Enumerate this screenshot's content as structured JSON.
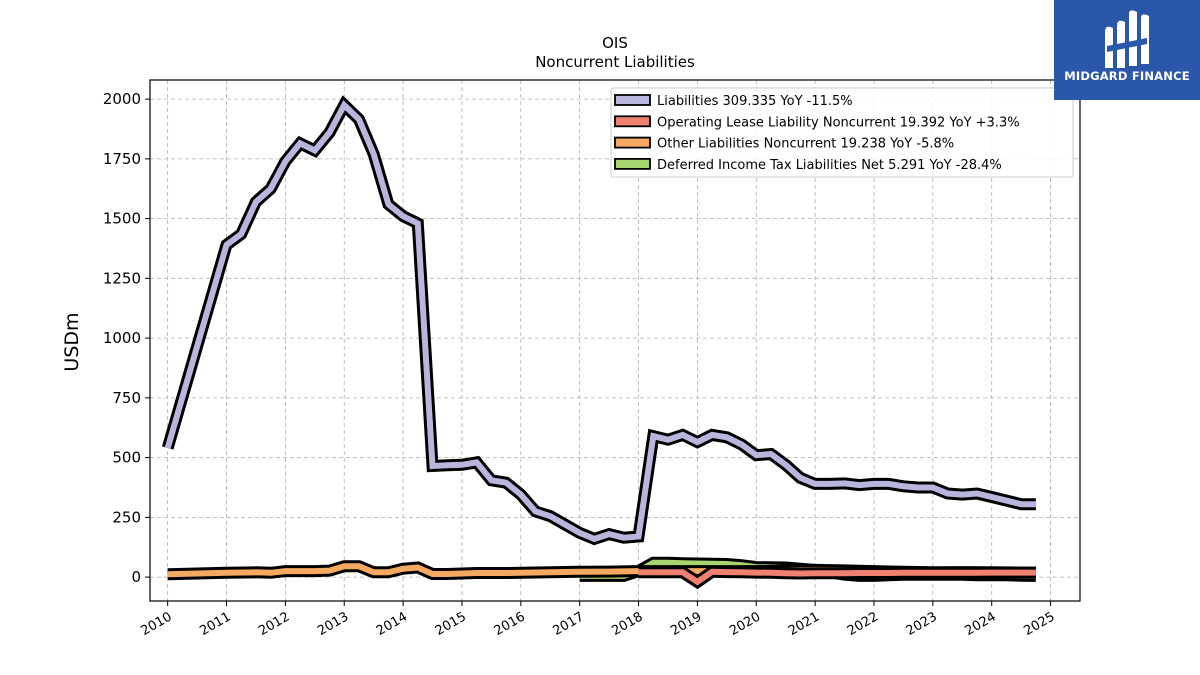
{
  "logo": {
    "text": "MIDGARD FINANCE"
  },
  "chart_data": {
    "type": "area",
    "title": "OIS",
    "subtitle": "Noncurrent  Liabilities",
    "ylabel": "USDm",
    "xlabel": "",
    "xlim": [
      2009.7,
      2025.5
    ],
    "ylim": [
      -100,
      2080
    ],
    "yticks": [
      0,
      250,
      500,
      750,
      1000,
      1250,
      1500,
      1750,
      2000
    ],
    "xticks": [
      2010,
      2011,
      2012,
      2013,
      2014,
      2015,
      2016,
      2017,
      2018,
      2019,
      2020,
      2021,
      2022,
      2023,
      2024,
      2025
    ],
    "grid": true,
    "legend_position": "top-right",
    "series": [
      {
        "name": "Liabilities  309.335 YoY -11.5%",
        "color": "#b8b6dd",
        "x": [
          2010.0,
          2011.0,
          2011.25,
          2011.5,
          2011.75,
          2012.0,
          2012.25,
          2012.5,
          2012.75,
          2013.0,
          2013.25,
          2013.5,
          2013.75,
          2014.0,
          2014.25,
          2014.5,
          2014.75,
          2015.0,
          2015.25,
          2015.5,
          2015.75,
          2016.0,
          2016.25,
          2016.5,
          2016.75,
          2017.0,
          2017.25,
          2017.5,
          2017.75,
          2018.0,
          2018.25,
          2018.5,
          2018.75,
          2019.0,
          2019.25,
          2019.5,
          2019.75,
          2020.0,
          2020.25,
          2020.5,
          2020.75,
          2021.0,
          2021.25,
          2021.5,
          2021.75,
          2022.0,
          2022.25,
          2022.5,
          2022.75,
          2023.0,
          2023.25,
          2023.5,
          2023.75,
          2024.0,
          2024.25,
          2024.5,
          2024.75
        ],
        "values": [
          540,
          1390,
          1435,
          1570,
          1625,
          1740,
          1815,
          1785,
          1860,
          1975,
          1915,
          1770,
          1560,
          1510,
          1480,
          465,
          468,
          470,
          480,
          405,
          395,
          345,
          275,
          255,
          220,
          185,
          160,
          180,
          165,
          170,
          590,
          575,
          595,
          565,
          595,
          585,
          555,
          510,
          515,
          470,
          415,
          390,
          390,
          392,
          385,
          390,
          390,
          380,
          375,
          375,
          350,
          345,
          350,
          335,
          320,
          305,
          305
        ]
      },
      {
        "name": "Operating Lease Liability Noncurrent  19.392 YoY +3.3%",
        "color": "#f08070",
        "x": [
          2018.0,
          2018.25,
          2018.5,
          2018.75,
          2019.0,
          2019.25,
          2019.5,
          2019.75,
          2020.0,
          2020.25,
          2020.5,
          2020.75,
          2021.0,
          2021.25,
          2021.5,
          2021.75,
          2022.0,
          2022.25,
          2022.5,
          2022.75,
          2023.0,
          2023.25,
          2023.5,
          2023.75,
          2024.0,
          2024.25,
          2024.5,
          2024.75
        ],
        "values": [
          20,
          20,
          20,
          20,
          -20,
          22,
          21,
          20,
          19,
          18,
          16,
          15,
          16,
          16,
          16,
          17,
          17,
          17,
          18,
          18,
          18,
          18,
          18,
          18,
          19,
          19,
          19,
          19
        ]
      },
      {
        "name": "Other Liabilities Noncurrent  19.238 YoY -5.8%",
        "color": "#f5a860",
        "x": [
          2010.0,
          2011.0,
          2011.5,
          2011.75,
          2012.0,
          2012.5,
          2012.75,
          2013.0,
          2013.25,
          2013.5,
          2013.75,
          2014.0,
          2014.25,
          2014.5,
          2014.75,
          2015.0,
          2015.25,
          2015.5,
          2015.75,
          2016.0,
          2016.5,
          2017.0,
          2017.5,
          2018.0,
          2018.5,
          2019.0,
          2019.5,
          2020.0,
          2020.5,
          2021.0,
          2021.5,
          2022.0,
          2022.5,
          2023.0,
          2023.5,
          2024.0,
          2024.5,
          2024.75
        ],
        "values": [
          12,
          18,
          20,
          18,
          25,
          25,
          27,
          45,
          45,
          20,
          20,
          35,
          40,
          13,
          13,
          15,
          17,
          17,
          17,
          18,
          20,
          22,
          23,
          25,
          25,
          25,
          25,
          25,
          28,
          30,
          28,
          25,
          22,
          20,
          21,
          20,
          19,
          19
        ]
      },
      {
        "name": "Deferred Income Tax Liabilities Net  5.291 YoY -28.4%",
        "color": "#a8d46f",
        "x": [
          2017.0,
          2017.75,
          2018.0,
          2018.25,
          2018.5,
          2018.75,
          2019.0,
          2019.5,
          2019.75,
          2020.0,
          2020.5,
          2020.75,
          2021.0,
          2021.5,
          2021.75,
          2022.0,
          2022.25,
          2022.5,
          2022.75,
          2023.0,
          2023.25,
          2023.5,
          2023.75,
          2024.0,
          2024.25,
          2024.5,
          2024.75
        ],
        "values": [
          5,
          5,
          25,
          60,
          60,
          58,
          57,
          55,
          50,
          42,
          40,
          35,
          30,
          10,
          5,
          5,
          8,
          10,
          10,
          10,
          10,
          10,
          8,
          8,
          8,
          6,
          5
        ]
      }
    ]
  }
}
